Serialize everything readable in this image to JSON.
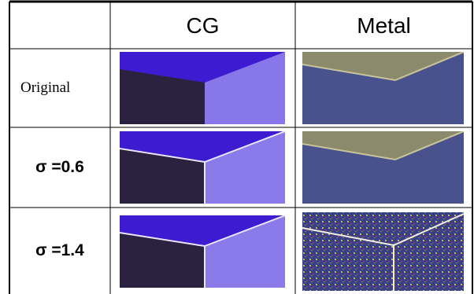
{
  "table": {
    "header": [
      "",
      "CG",
      "Metal"
    ],
    "rows": [
      [
        "Original"
      ],
      [
        "σ =0.6"
      ],
      [
        "σ =1.4"
      ]
    ]
  }
}
